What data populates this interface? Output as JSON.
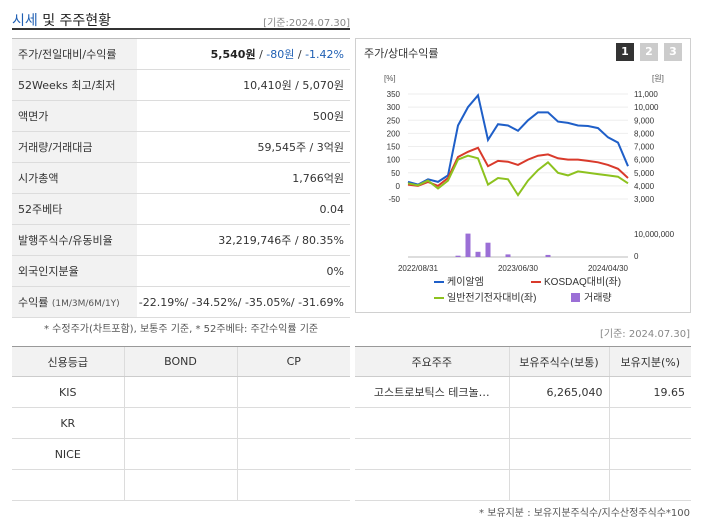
{
  "header": {
    "title_blue": "시세",
    "title_rest": " 및 주주현황",
    "date": "[기준:2024.07.30]"
  },
  "info": {
    "price_label": "주가/전일대비/수익률",
    "price": "5,540원",
    "sep1": " / ",
    "change": "-80원",
    "sep2": " / ",
    "rate": "-1.42%",
    "week52_label": "52Weeks 최고/최저",
    "week52": "10,410원 / 5,070원",
    "par_label": "액면가",
    "par": "500원",
    "volume_label": "거래량/거래대금",
    "volume": "59,545주 / 3억원",
    "mcap_label": "시가총액",
    "mcap": "1,766억원",
    "beta_label": "52주베타",
    "beta": "0.04",
    "shares_label": "발행주식수/유동비율",
    "shares": "32,219,746주 / 80.35%",
    "foreign_label": "외국인지분율",
    "foreign": "0%",
    "returns_label": "수익률",
    "returns_sub": "(1M/3M/6M/1Y)",
    "returns": "-22.19%/ -34.52%/ -35.05%/ -31.69%"
  },
  "notes": {
    "left": "* 수정주가(차트포함), 보통주 기준, * 52주베타: 주간수익률 기준",
    "right": "[기준: 2024.07.30]",
    "holder": "* 보유지분 : 보유지분주식수/지수산정주식수*100"
  },
  "chart": {
    "title": "주가/상대수익률",
    "tabs": [
      "1",
      "2",
      "3"
    ],
    "left_unit": "[%]",
    "right_unit": "[원]"
  },
  "chart_data": {
    "type": "line",
    "x_labels": [
      "2022/08/31",
      "2023/06/30",
      "2024/04/30"
    ],
    "y_left_ticks": [
      "350",
      "300",
      "250",
      "200",
      "150",
      "100",
      "50",
      "0",
      "-50"
    ],
    "y_right_ticks": [
      "11,000",
      "10,000",
      "9,000",
      "8,000",
      "7,000",
      "6,000",
      "5,000",
      "4,000",
      "3,000"
    ],
    "vol_ticks": [
      "10,000,000",
      "0"
    ],
    "ylim": [
      -50,
      350
    ],
    "series": [
      {
        "name": "케이알엠",
        "color": "#1f5fc8",
        "values": [
          15,
          5,
          25,
          15,
          40,
          230,
          300,
          345,
          175,
          235,
          230,
          210,
          250,
          280,
          280,
          245,
          240,
          230,
          228,
          220,
          185,
          165,
          75
        ]
      },
      {
        "name": "KOSDAQ대비(좌)",
        "color": "#d93a2b",
        "values": [
          5,
          0,
          15,
          0,
          30,
          110,
          130,
          145,
          75,
          95,
          92,
          80,
          100,
          115,
          120,
          105,
          100,
          100,
          95,
          90,
          80,
          65,
          30
        ]
      },
      {
        "name": "일반전기전자대비(좌)",
        "color": "#8dc21f",
        "values": [
          10,
          2,
          20,
          -10,
          20,
          100,
          115,
          105,
          5,
          30,
          25,
          -35,
          20,
          60,
          90,
          50,
          40,
          55,
          50,
          45,
          40,
          35,
          10
        ]
      }
    ],
    "volume": {
      "name": "거래량",
      "color": "#9b6fd6",
      "bars": [
        0,
        0,
        0,
        0,
        0,
        0.05,
        0.9,
        0.2,
        0.55,
        0,
        0.1,
        0,
        0,
        0,
        0.08,
        0,
        0,
        0,
        0,
        0,
        0,
        0,
        0
      ]
    }
  },
  "credit": {
    "headers": [
      "신용등급",
      "BOND",
      "CP"
    ],
    "rows": [
      [
        "KIS",
        "",
        ""
      ],
      [
        "KR",
        "",
        ""
      ],
      [
        "NICE",
        "",
        ""
      ],
      [
        "",
        "",
        ""
      ]
    ]
  },
  "holders": {
    "headers": [
      "주요주주",
      "보유주식수(보통)",
      "보유지분(%)"
    ],
    "rows": [
      [
        "고스트로보틱스 테크놀…",
        "6,265,040",
        "19.65"
      ],
      [
        "",
        "",
        ""
      ],
      [
        "",
        "",
        ""
      ],
      [
        "",
        "",
        ""
      ]
    ]
  }
}
